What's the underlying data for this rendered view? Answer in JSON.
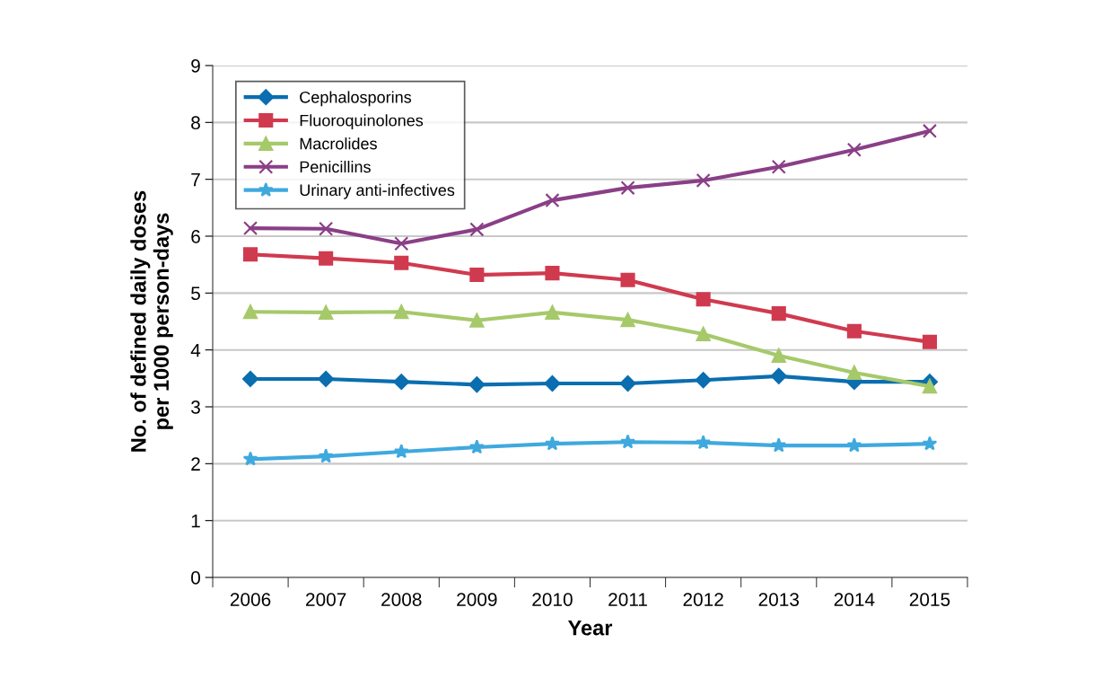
{
  "chart_data": {
    "type": "line",
    "xlabel": "Year",
    "ylabel": "No. of defined daily doses\nper 1000 person-days",
    "categories": [
      "2006",
      "2007",
      "2008",
      "2009",
      "2010",
      "2011",
      "2012",
      "2013",
      "2014",
      "2015"
    ],
    "series": [
      {
        "name": "Cephalosporins",
        "color": "#0a6eb0",
        "marker": "diamond",
        "values": [
          3.49,
          3.49,
          3.44,
          3.39,
          3.41,
          3.41,
          3.47,
          3.54,
          3.44,
          3.44
        ]
      },
      {
        "name": "Fluoroquinolones",
        "color": "#d03a4f",
        "marker": "square",
        "values": [
          5.68,
          5.61,
          5.53,
          5.32,
          5.35,
          5.23,
          4.89,
          4.64,
          4.33,
          4.14
        ]
      },
      {
        "name": "Macrolides",
        "color": "#a6c96a",
        "marker": "triangle",
        "values": [
          4.67,
          4.66,
          4.67,
          4.52,
          4.66,
          4.53,
          4.28,
          3.9,
          3.6,
          3.36
        ]
      },
      {
        "name": "Penicillins",
        "color": "#8a3f87",
        "marker": "cross",
        "values": [
          6.14,
          6.13,
          5.87,
          6.12,
          6.63,
          6.85,
          6.98,
          7.22,
          7.52,
          7.85
        ]
      },
      {
        "name": "Urinary anti-infectives",
        "color": "#3fa9de",
        "marker": "star",
        "values": [
          2.08,
          2.13,
          2.21,
          2.29,
          2.35,
          2.38,
          2.37,
          2.32,
          2.32,
          2.35
        ]
      }
    ],
    "ylim": [
      0,
      9
    ],
    "yticks": [
      0,
      1,
      2,
      3,
      4,
      5,
      6,
      7,
      8,
      9
    ],
    "grid": "y",
    "legend": "top left",
    "line_style": "solid"
  }
}
